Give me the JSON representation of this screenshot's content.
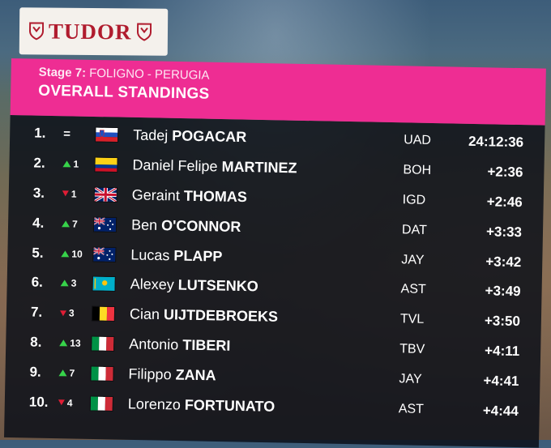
{
  "sponsor": {
    "name": "TUDOR",
    "color": "#b01c2e"
  },
  "header": {
    "stage_label": "Stage 7:",
    "stage_route": "FOLIGNO - PERUGIA",
    "title": "OVERALL STANDINGS",
    "accent": "#ee2d93"
  },
  "standings": [
    {
      "pos": "1.",
      "move_dir": "same",
      "move_num": "=",
      "flag": "slovenia",
      "first": "Tadej",
      "last": "POGACAR",
      "team": "UAD",
      "time": "24:12:36"
    },
    {
      "pos": "2.",
      "move_dir": "up",
      "move_num": "1",
      "flag": "colombia",
      "first": "Daniel Felipe",
      "last": "MARTINEZ",
      "team": "BOH",
      "time": "+2:36"
    },
    {
      "pos": "3.",
      "move_dir": "down",
      "move_num": "1",
      "flag": "uk",
      "first": "Geraint",
      "last": "THOMAS",
      "team": "IGD",
      "time": "+2:46"
    },
    {
      "pos": "4.",
      "move_dir": "up",
      "move_num": "7",
      "flag": "australia",
      "first": "Ben",
      "last": "O'CONNOR",
      "team": "DAT",
      "time": "+3:33"
    },
    {
      "pos": "5.",
      "move_dir": "up",
      "move_num": "10",
      "flag": "australia",
      "first": "Lucas",
      "last": "PLAPP",
      "team": "JAY",
      "time": "+3:42"
    },
    {
      "pos": "6.",
      "move_dir": "up",
      "move_num": "3",
      "flag": "kazakhstan",
      "first": "Alexey",
      "last": "LUTSENKO",
      "team": "AST",
      "time": "+3:49"
    },
    {
      "pos": "7.",
      "move_dir": "down",
      "move_num": "3",
      "flag": "belgium",
      "first": "Cian",
      "last": "UIJTDEBROEKS",
      "team": "TVL",
      "time": "+3:50"
    },
    {
      "pos": "8.",
      "move_dir": "up",
      "move_num": "13",
      "flag": "italy",
      "first": "Antonio",
      "last": "TIBERI",
      "team": "TBV",
      "time": "+4:11"
    },
    {
      "pos": "9.",
      "move_dir": "up",
      "move_num": "7",
      "flag": "italy",
      "first": "Filippo",
      "last": "ZANA",
      "team": "JAY",
      "time": "+4:41"
    },
    {
      "pos": "10.",
      "move_dir": "down",
      "move_num": "4",
      "flag": "italy",
      "first": "Lorenzo",
      "last": "FORTUNATO",
      "team": "AST",
      "time": "+4:44"
    }
  ]
}
